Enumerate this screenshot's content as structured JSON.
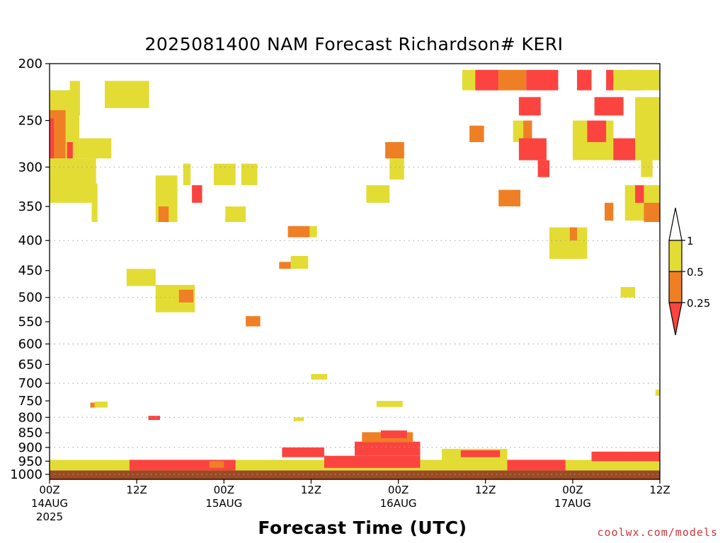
{
  "title": "2025081400 NAM Forecast Richardson# KERI",
  "x_axis_title": "Forecast Time (UTC)",
  "credit": "coolwx.com/models",
  "colors": {
    "lt_025": "#fb4440",
    "r025_05": "#ef7f25",
    "r05_1": "#e3dc35",
    "ground": "#9b4b23",
    "grid": "#a0a0a0"
  },
  "chart_data": {
    "type": "heatmap",
    "title": "2025081400 NAM Forecast Richardson# KERI",
    "xlabel": "Forecast Time (UTC)",
    "ylabel": "",
    "x_units": "forecast hour from 2025-08-14 00Z",
    "xlim": [
      0,
      84
    ],
    "y_units": "pressure (hPa)",
    "ylim": [
      1000,
      200
    ],
    "y_scale": "log",
    "y_ticks": [
      200,
      250,
      300,
      350,
      400,
      450,
      500,
      550,
      600,
      650,
      700,
      750,
      800,
      850,
      900,
      950,
      1000
    ],
    "y_gridlines": [
      300,
      400,
      500,
      600,
      700,
      800,
      900,
      1000
    ],
    "x_ticks": [
      {
        "hour": 0,
        "lines": [
          "00Z",
          "14AUG",
          "2025"
        ]
      },
      {
        "hour": 12,
        "lines": [
          "12Z"
        ]
      },
      {
        "hour": 24,
        "lines": [
          "00Z",
          "15AUG"
        ]
      },
      {
        "hour": 36,
        "lines": [
          "12Z"
        ]
      },
      {
        "hour": 48,
        "lines": [
          "00Z",
          "16AUG"
        ]
      },
      {
        "hour": 60,
        "lines": [
          "12Z"
        ]
      },
      {
        "hour": 72,
        "lines": [
          "00Z",
          "17AUG"
        ]
      },
      {
        "hour": 84,
        "lines": [
          "12Z"
        ]
      }
    ],
    "legend": {
      "placement": "right",
      "boundary_labels": [
        "1",
        "0.5",
        "0.25"
      ],
      "bins": [
        {
          "range": "> 1",
          "color": "#ffffff"
        },
        {
          "range": "0.5 - 1",
          "color": "#e3dc35"
        },
        {
          "range": "0.25 - 0.5",
          "color": "#ef7f25"
        },
        {
          "range": "< 0.25",
          "color": "#fb4440"
        }
      ]
    },
    "ground_below_p": 985,
    "cells": [
      {
        "t0": 0,
        "t1": 4.1,
        "p0": 222,
        "p1": 290,
        "v": "y"
      },
      {
        "t0": 0,
        "t1": 2.2,
        "p0": 240,
        "p1": 290,
        "v": "o"
      },
      {
        "t0": 0,
        "t1": 0.6,
        "p0": 248,
        "p1": 290,
        "v": "r"
      },
      {
        "t0": 2.4,
        "t1": 3.2,
        "p0": 272,
        "p1": 290,
        "v": "r"
      },
      {
        "t0": 4.1,
        "t1": 8.5,
        "p0": 268,
        "p1": 290,
        "v": "y"
      },
      {
        "t0": 0,
        "t1": 6.4,
        "p0": 290,
        "p1": 345,
        "v": "y"
      },
      {
        "t0": 2.8,
        "t1": 4.2,
        "p0": 214,
        "p1": 245,
        "v": "y"
      },
      {
        "t0": 7.6,
        "t1": 13.7,
        "p0": 214,
        "p1": 238,
        "v": "y"
      },
      {
        "t0": 5.8,
        "t1": 6.6,
        "p0": 320,
        "p1": 372,
        "v": "y"
      },
      {
        "t0": 14.6,
        "t1": 17.6,
        "p0": 310,
        "p1": 372,
        "v": "y"
      },
      {
        "t0": 19.6,
        "t1": 21.0,
        "p0": 322,
        "p1": 345,
        "v": "r"
      },
      {
        "t0": 15.0,
        "t1": 16.4,
        "p0": 350,
        "p1": 372,
        "v": "o"
      },
      {
        "t0": 18.4,
        "t1": 19.4,
        "p0": 296,
        "p1": 322,
        "v": "y"
      },
      {
        "t0": 22.6,
        "t1": 25.6,
        "p0": 296,
        "p1": 322,
        "v": "y"
      },
      {
        "t0": 26.4,
        "t1": 28.6,
        "p0": 296,
        "p1": 322,
        "v": "y"
      },
      {
        "t0": 24.2,
        "t1": 27.0,
        "p0": 350,
        "p1": 372,
        "v": "y"
      },
      {
        "t0": 10.6,
        "t1": 14.6,
        "p0": 447,
        "p1": 478,
        "v": "y"
      },
      {
        "t0": 14.6,
        "t1": 20.0,
        "p0": 476,
        "p1": 530,
        "v": "y"
      },
      {
        "t0": 17.8,
        "t1": 19.8,
        "p0": 485,
        "p1": 510,
        "v": "o"
      },
      {
        "t0": 27.0,
        "t1": 29.0,
        "p0": 538,
        "p1": 560,
        "v": "o"
      },
      {
        "t0": 33.2,
        "t1": 35.6,
        "p0": 425,
        "p1": 447,
        "v": "y"
      },
      {
        "t0": 31.6,
        "t1": 33.2,
        "p0": 435,
        "p1": 447,
        "v": "o"
      },
      {
        "t0": 32.8,
        "t1": 35.8,
        "p0": 378,
        "p1": 395,
        "v": "o"
      },
      {
        "t0": 35.8,
        "t1": 36.8,
        "p0": 378,
        "p1": 395,
        "v": "y"
      },
      {
        "t0": 46.2,
        "t1": 48.8,
        "p0": 272,
        "p1": 290,
        "v": "o"
      },
      {
        "t0": 46.8,
        "t1": 48.8,
        "p0": 290,
        "p1": 315,
        "v": "y"
      },
      {
        "t0": 43.6,
        "t1": 46.8,
        "p0": 322,
        "p1": 345,
        "v": "y"
      },
      {
        "t0": 36.0,
        "t1": 38.2,
        "p0": 675,
        "p1": 690,
        "v": "y"
      },
      {
        "t0": 45.0,
        "t1": 48.6,
        "p0": 750,
        "p1": 768,
        "v": "y"
      },
      {
        "t0": 56.8,
        "t1": 63.2,
        "p0": 205,
        "p1": 222,
        "v": "y"
      },
      {
        "t0": 58.6,
        "t1": 61.8,
        "p0": 205,
        "p1": 222,
        "v": "r"
      },
      {
        "t0": 61.8,
        "t1": 65.6,
        "p0": 205,
        "p1": 222,
        "v": "o"
      },
      {
        "t0": 65.6,
        "t1": 70.0,
        "p0": 205,
        "p1": 222,
        "v": "r"
      },
      {
        "t0": 72.6,
        "t1": 74.6,
        "p0": 205,
        "p1": 222,
        "v": "r"
      },
      {
        "t0": 76.6,
        "t1": 77.6,
        "p0": 205,
        "p1": 222,
        "v": "r"
      },
      {
        "t0": 79.4,
        "t1": 81.4,
        "p0": 205,
        "p1": 222,
        "v": "r"
      },
      {
        "t0": 77.6,
        "t1": 84.0,
        "p0": 205,
        "p1": 222,
        "v": "y"
      },
      {
        "t0": 64.6,
        "t1": 67.6,
        "p0": 228,
        "p1": 245,
        "v": "r"
      },
      {
        "t0": 75.0,
        "t1": 79.0,
        "p0": 228,
        "p1": 245,
        "v": "r"
      },
      {
        "t0": 57.8,
        "t1": 59.8,
        "p0": 255,
        "p1": 272,
        "v": "o"
      },
      {
        "t0": 63.8,
        "t1": 65.2,
        "p0": 250,
        "p1": 272,
        "v": "y"
      },
      {
        "t0": 65.2,
        "t1": 66.4,
        "p0": 250,
        "p1": 282,
        "v": "o"
      },
      {
        "t0": 64.6,
        "t1": 68.4,
        "p0": 268,
        "p1": 292,
        "v": "r"
      },
      {
        "t0": 67.2,
        "t1": 68.8,
        "p0": 292,
        "p1": 312,
        "v": "r"
      },
      {
        "t0": 61.8,
        "t1": 64.8,
        "p0": 328,
        "p1": 350,
        "v": "o"
      },
      {
        "t0": 72.0,
        "t1": 77.6,
        "p0": 250,
        "p1": 292,
        "v": "y"
      },
      {
        "t0": 74.0,
        "t1": 76.6,
        "p0": 250,
        "p1": 272,
        "v": "r"
      },
      {
        "t0": 77.6,
        "t1": 82.6,
        "p0": 268,
        "p1": 292,
        "v": "r"
      },
      {
        "t0": 80.6,
        "t1": 84.0,
        "p0": 228,
        "p1": 292,
        "v": "y"
      },
      {
        "t0": 81.4,
        "t1": 83.0,
        "p0": 292,
        "p1": 312,
        "v": "y"
      },
      {
        "t0": 79.2,
        "t1": 84.0,
        "p0": 322,
        "p1": 370,
        "v": "y"
      },
      {
        "t0": 80.6,
        "t1": 81.8,
        "p0": 322,
        "p1": 345,
        "v": "r"
      },
      {
        "t0": 81.8,
        "t1": 84.0,
        "p0": 345,
        "p1": 372,
        "v": "o"
      },
      {
        "t0": 76.4,
        "t1": 77.6,
        "p0": 345,
        "p1": 370,
        "v": "o"
      },
      {
        "t0": 68.8,
        "t1": 74.0,
        "p0": 380,
        "p1": 430,
        "v": "y"
      },
      {
        "t0": 71.6,
        "t1": 72.6,
        "p0": 380,
        "p1": 400,
        "v": "o"
      },
      {
        "t0": 78.6,
        "t1": 80.6,
        "p0": 480,
        "p1": 500,
        "v": "y"
      },
      {
        "t0": 83.4,
        "t1": 84.0,
        "p0": 718,
        "p1": 735,
        "v": "y"
      },
      {
        "t0": 0,
        "t1": 84.0,
        "p0": 945,
        "p1": 985,
        "v": "y"
      },
      {
        "t0": 11.0,
        "t1": 25.6,
        "p0": 945,
        "p1": 985,
        "v": "r"
      },
      {
        "t0": 37.8,
        "t1": 51.0,
        "p0": 930,
        "p1": 975,
        "v": "r"
      },
      {
        "t0": 42.0,
        "t1": 51.0,
        "p0": 880,
        "p1": 930,
        "v": "r"
      },
      {
        "t0": 43.0,
        "t1": 50.0,
        "p0": 848,
        "p1": 882,
        "v": "o"
      },
      {
        "t0": 45.6,
        "t1": 49.2,
        "p0": 842,
        "p1": 868,
        "v": "r"
      },
      {
        "t0": 32.0,
        "t1": 37.8,
        "p0": 900,
        "p1": 935,
        "v": "r"
      },
      {
        "t0": 54.0,
        "t1": 63.0,
        "p0": 905,
        "p1": 950,
        "v": "y"
      },
      {
        "t0": 56.6,
        "t1": 62.0,
        "p0": 910,
        "p1": 935,
        "v": "r"
      },
      {
        "t0": 63.0,
        "t1": 71.0,
        "p0": 945,
        "p1": 985,
        "v": "r"
      },
      {
        "t0": 74.6,
        "t1": 84.0,
        "p0": 915,
        "p1": 950,
        "v": "r"
      },
      {
        "t0": 22.0,
        "t1": 24.0,
        "p0": 950,
        "p1": 975,
        "v": "o"
      },
      {
        "t0": 5.6,
        "t1": 7.8,
        "p0": 755,
        "p1": 770,
        "v": "o"
      },
      {
        "t0": 6.2,
        "t1": 8.0,
        "p0": 752,
        "p1": 770,
        "v": "y"
      },
      {
        "t0": 13.6,
        "t1": 15.2,
        "p0": 795,
        "p1": 808,
        "v": "r"
      },
      {
        "t0": 33.6,
        "t1": 35.0,
        "p0": 800,
        "p1": 812,
        "v": "y"
      }
    ]
  }
}
